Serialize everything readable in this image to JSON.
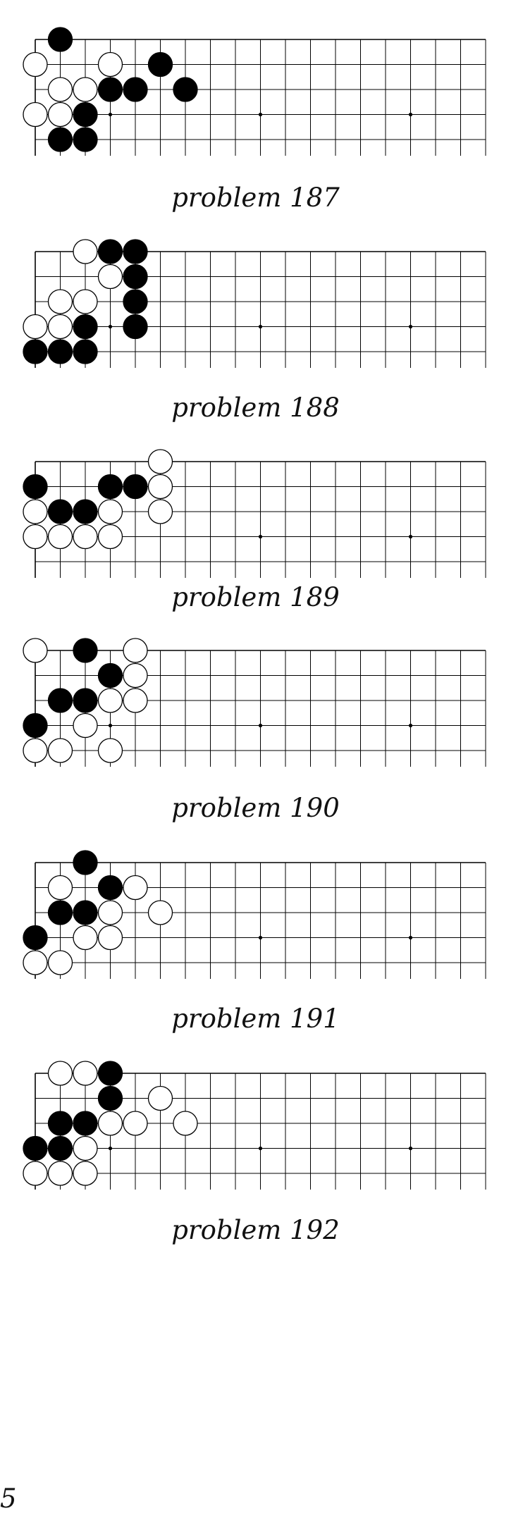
{
  "stone_colors": {
    "black": "#000000",
    "white": "#ffffff",
    "line": "#000000"
  },
  "page_number": "5",
  "problems": [
    {
      "caption": "problem 187",
      "black": [
        [
          1,
          0
        ],
        [
          5,
          1
        ],
        [
          3,
          2
        ],
        [
          4,
          2
        ],
        [
          6,
          2
        ],
        [
          2,
          3
        ],
        [
          1,
          4
        ],
        [
          2,
          4
        ]
      ],
      "white": [
        [
          0,
          1
        ],
        [
          3,
          1
        ],
        [
          1,
          2
        ],
        [
          2,
          2
        ],
        [
          0,
          3
        ],
        [
          1,
          3
        ]
      ]
    },
    {
      "caption": "problem 188",
      "black": [
        [
          3,
          0
        ],
        [
          4,
          0
        ],
        [
          4,
          1
        ],
        [
          4,
          2
        ],
        [
          2,
          3
        ],
        [
          4,
          3
        ],
        [
          0,
          4
        ],
        [
          1,
          4
        ],
        [
          2,
          4
        ]
      ],
      "white": [
        [
          2,
          0
        ],
        [
          3,
          1
        ],
        [
          1,
          2
        ],
        [
          2,
          2
        ],
        [
          0,
          3
        ],
        [
          1,
          3
        ]
      ]
    },
    {
      "caption": "problem 189",
      "black": [
        [
          0,
          1
        ],
        [
          3,
          1
        ],
        [
          4,
          1
        ],
        [
          1,
          2
        ],
        [
          2,
          2
        ]
      ],
      "white": [
        [
          5,
          0
        ],
        [
          5,
          1
        ],
        [
          0,
          2
        ],
        [
          3,
          2
        ],
        [
          5,
          2
        ],
        [
          0,
          3
        ],
        [
          1,
          3
        ],
        [
          2,
          3
        ],
        [
          3,
          3
        ]
      ]
    },
    {
      "caption": "problem 190",
      "black": [
        [
          2,
          0
        ],
        [
          3,
          1
        ],
        [
          1,
          2
        ],
        [
          2,
          2
        ],
        [
          0,
          3
        ]
      ],
      "white": [
        [
          0,
          0
        ],
        [
          4,
          0
        ],
        [
          4,
          1
        ],
        [
          3,
          2
        ],
        [
          4,
          2
        ],
        [
          2,
          3
        ],
        [
          0,
          4
        ],
        [
          1,
          4
        ],
        [
          3,
          4
        ]
      ]
    },
    {
      "caption": "problem 191",
      "black": [
        [
          2,
          0
        ],
        [
          3,
          1
        ],
        [
          1,
          2
        ],
        [
          2,
          2
        ],
        [
          0,
          3
        ]
      ],
      "white": [
        [
          1,
          1
        ],
        [
          4,
          1
        ],
        [
          3,
          2
        ],
        [
          5,
          2
        ],
        [
          2,
          3
        ],
        [
          3,
          3
        ],
        [
          0,
          4
        ],
        [
          1,
          4
        ]
      ]
    },
    {
      "caption": "problem 192",
      "black": [
        [
          3,
          0
        ],
        [
          3,
          1
        ],
        [
          1,
          2
        ],
        [
          2,
          2
        ],
        [
          0,
          3
        ],
        [
          1,
          3
        ]
      ],
      "white": [
        [
          1,
          0
        ],
        [
          2,
          0
        ],
        [
          5,
          1
        ],
        [
          3,
          2
        ],
        [
          4,
          2
        ],
        [
          6,
          2
        ],
        [
          2,
          3
        ],
        [
          0,
          4
        ],
        [
          1,
          4
        ],
        [
          2,
          4
        ]
      ]
    }
  ]
}
